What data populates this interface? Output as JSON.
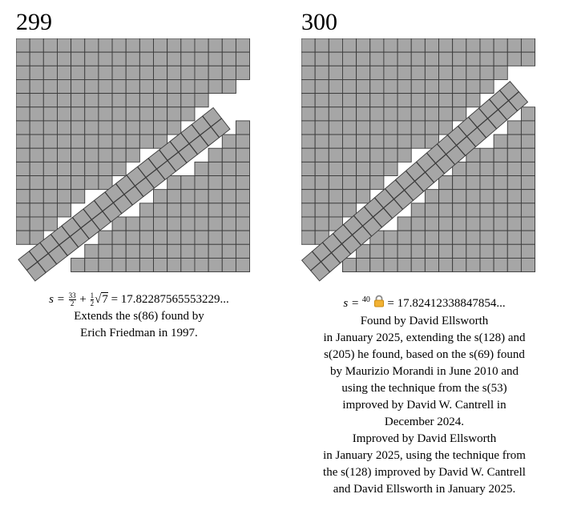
{
  "panels": [
    {
      "number": "299",
      "formula": {
        "lhs": "s =",
        "frac1_num": "33",
        "frac1_den": "2",
        "plus": "+",
        "frac2_num": "1",
        "frac2_den": "2",
        "radicand": "7",
        "rhs": "= 17.82287565553229..."
      },
      "lines": [
        "Extends the s(86) found by",
        "Erich Friedman in 1997."
      ]
    },
    {
      "number": "300",
      "formula": {
        "lhs": "s =",
        "sup": "40",
        "lock_icon": "lock-icon",
        "rhs": "= 17.82412338847854..."
      },
      "lines": [
        "Found by David Ellsworth",
        "in January 2025, extending the s(128) and",
        "s(205) he found, based on the s(69) found",
        "by Maurizio Morandi in June 2010 and",
        "using the technique from the s(53)",
        "improved by David W. Cantrell in",
        "December 2024.",
        "Improved by David Ellsworth",
        "in January 2025, using the technique from",
        "the s(128) improved by David W. Cantrell",
        "and David Ellsworth in January 2025."
      ]
    }
  ],
  "colors": {
    "square_fill": "#a6a6a6",
    "square_stroke": "#3a3a3a",
    "background": "#ffffff"
  }
}
